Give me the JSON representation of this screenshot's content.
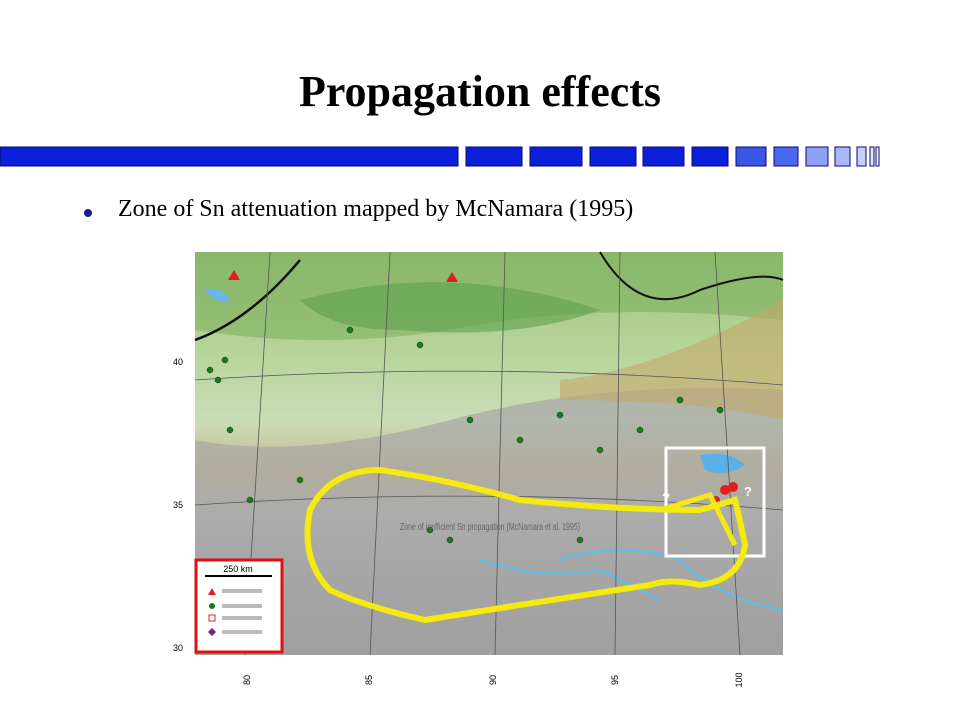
{
  "slide": {
    "title": "Propagation effects",
    "bullets": [
      "Zone of Sn attenuation mapped by McNamara (1995)"
    ],
    "map": {
      "annotation": "Zone of inefficient Sn propagation (McNamara et al. 1995)",
      "scale": "250 km",
      "question_marks": [
        "?",
        "?"
      ],
      "lat_labels": [
        "40",
        "35",
        "30"
      ],
      "lon_labels": [
        "80",
        "85",
        "90",
        "95",
        "100"
      ]
    }
  }
}
